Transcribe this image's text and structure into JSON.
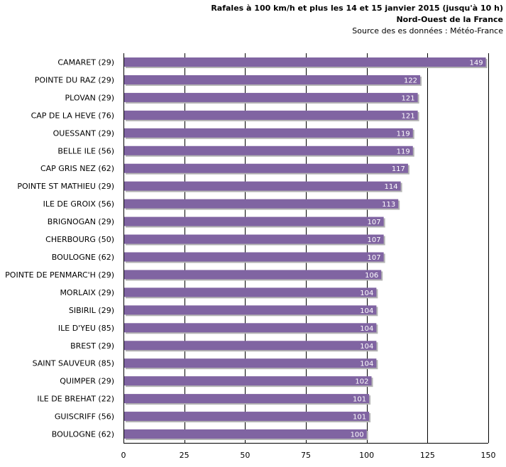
{
  "header": {
    "title": "Rafales à 100 km/h et plus les 14 et 15 janvier 2015 (jusqu'à 10 h)",
    "subtitle": "Nord-Ouest de la France",
    "source": "Source des es données : Météo-France"
  },
  "colors": {
    "bar": "#8064a2",
    "bar_shadow": "#b3b3b3",
    "grid": "#000000"
  },
  "chart_data": {
    "type": "bar",
    "orientation": "horizontal",
    "title": "Rafales à 100 km/h et plus les 14 et 15 janvier 2015 (jusqu'à 10 h)",
    "categories": [
      "CAMARET (29)",
      "POINTE DU RAZ (29)",
      "PLOVAN (29)",
      "CAP DE LA HEVE (76)",
      "OUESSANT (29)",
      "BELLE ILE (56)",
      "CAP GRIS NEZ (62)",
      "POINTE ST MATHIEU (29)",
      "ILE DE GROIX (56)",
      "BRIGNOGAN (29)",
      "CHERBOURG (50)",
      "BOULOGNE (62)",
      "POINTE DE PENMARC'H (29)",
      "MORLAIX (29)",
      "SIBIRIL (29)",
      "ILE D'YEU (85)",
      "BREST (29)",
      "SAINT SAUVEUR (85)",
      "QUIMPER (29)",
      "ILE DE BREHAT (22)",
      "GUISCRIFF (56)",
      "BOULOGNE (62)"
    ],
    "values": [
      149,
      122,
      121,
      121,
      119,
      119,
      117,
      114,
      113,
      107,
      107,
      107,
      106,
      104,
      104,
      104,
      104,
      104,
      102,
      101,
      101,
      100
    ],
    "xlim": [
      0,
      150
    ],
    "xticks": [
      0,
      25,
      50,
      75,
      100,
      125,
      150
    ],
    "grid": "vertical",
    "data_labels": true
  }
}
